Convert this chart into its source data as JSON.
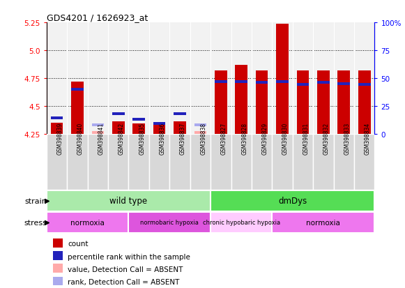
{
  "title": "GDS4201 / 1626923_at",
  "samples": [
    "GSM398839",
    "GSM398840",
    "GSM398841",
    "GSM398842",
    "GSM398835",
    "GSM398836",
    "GSM398837",
    "GSM398838",
    "GSM398827",
    "GSM398828",
    "GSM398829",
    "GSM398830",
    "GSM398831",
    "GSM398832",
    "GSM398833",
    "GSM398834"
  ],
  "values": [
    4.35,
    4.72,
    4.27,
    4.36,
    4.34,
    4.33,
    4.36,
    4.27,
    4.82,
    4.87,
    4.82,
    5.24,
    4.82,
    4.82,
    4.82,
    4.82
  ],
  "percentile_ranks": [
    14,
    40,
    8,
    18,
    13,
    9,
    18,
    8,
    47,
    47,
    46,
    47,
    44,
    46,
    45,
    44
  ],
  "absent": [
    false,
    false,
    true,
    false,
    false,
    false,
    false,
    true,
    false,
    false,
    false,
    false,
    false,
    false,
    false,
    false
  ],
  "ymin": 4.25,
  "ymax": 5.25,
  "yticks_left": [
    4.25,
    4.5,
    4.75,
    5.0,
    5.25
  ],
  "yticks_right": [
    0,
    25,
    50,
    75,
    100
  ],
  "bar_color": "#cc0000",
  "bar_color_absent": "#ffaaaa",
  "rank_color": "#2222bb",
  "rank_color_absent": "#aaaaee",
  "strain_groups": [
    {
      "label": "wild type",
      "start": 0,
      "end": 8,
      "color": "#aaeaaa"
    },
    {
      "label": "dmDys",
      "start": 8,
      "end": 16,
      "color": "#55dd55"
    }
  ],
  "stress_groups": [
    {
      "label": "normoxia",
      "start": 0,
      "end": 4,
      "color": "#ee77ee"
    },
    {
      "label": "normobaric hypoxia",
      "start": 4,
      "end": 8,
      "color": "#dd55dd"
    },
    {
      "label": "chronic hypobaric hypoxia",
      "start": 8,
      "end": 11,
      "color": "#ffccff"
    },
    {
      "label": "normoxia",
      "start": 11,
      "end": 16,
      "color": "#ee77ee"
    }
  ],
  "legend_items": [
    {
      "label": "count",
      "color": "#cc0000"
    },
    {
      "label": "percentile rank within the sample",
      "color": "#2222bb"
    },
    {
      "label": "value, Detection Call = ABSENT",
      "color": "#ffaaaa"
    },
    {
      "label": "rank, Detection Call = ABSENT",
      "color": "#aaaaee"
    }
  ]
}
